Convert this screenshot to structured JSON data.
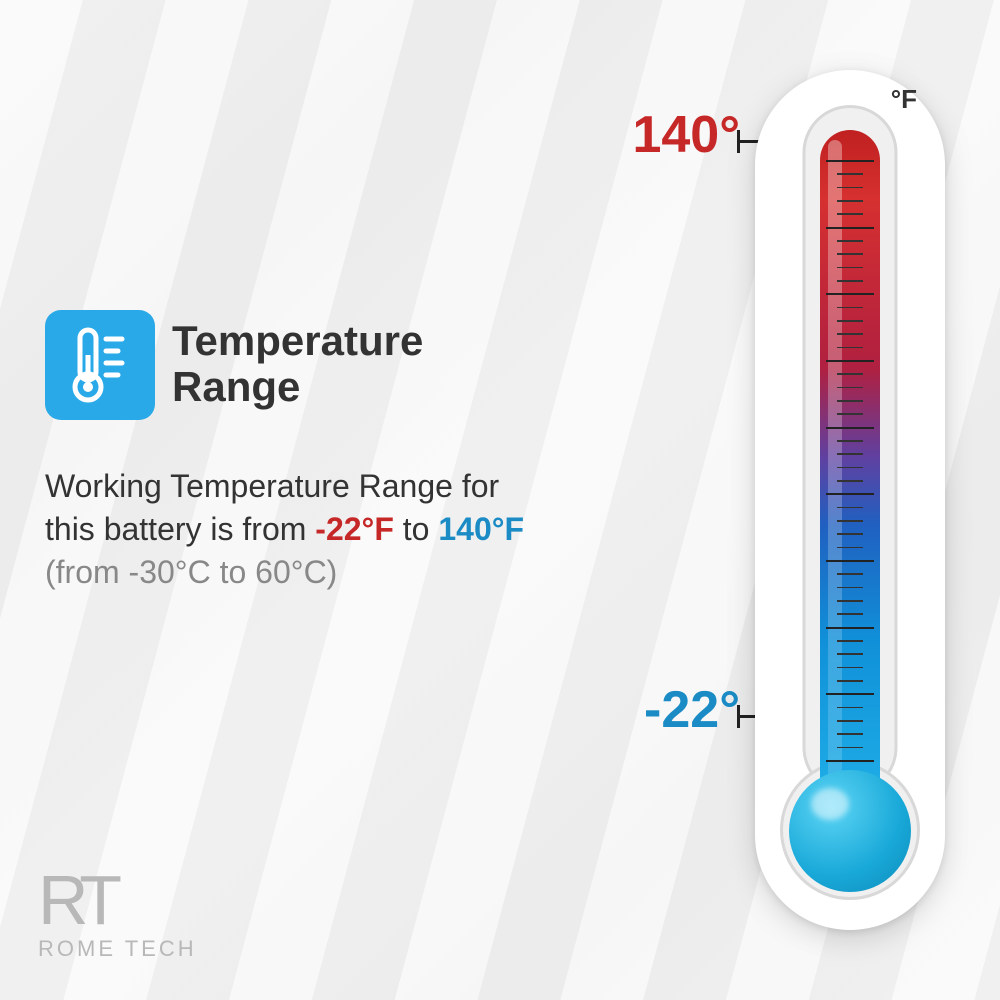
{
  "title": "Temperature Range",
  "description": {
    "prefix": "Working Temperature Range for this battery is from ",
    "low_f": "-22°F",
    "mid": " to ",
    "high_f": "140°F",
    "celsius": "(from -30°C to 60°C)"
  },
  "thermometer": {
    "unit": "°F",
    "high_label": "140°",
    "low_label": "-22°",
    "colors": {
      "hot": "#c62828",
      "cold": "#1a8bc4",
      "icon_bg": "#29a9e8",
      "body": "#ffffff"
    },
    "ticks": {
      "count": 45,
      "major_every": 5
    }
  },
  "logo": {
    "mark": "RT",
    "text": "ROME TECH"
  }
}
